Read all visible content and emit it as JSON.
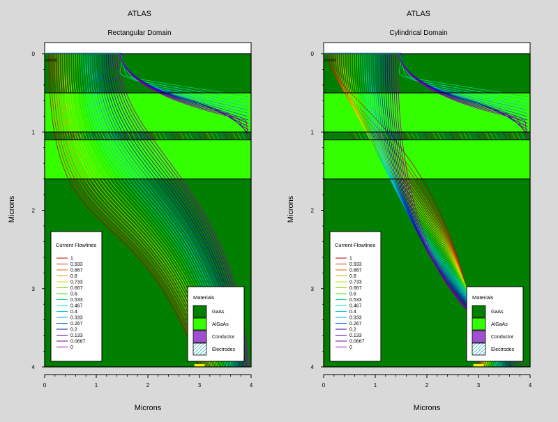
{
  "colors": {
    "background": "#d9d9d9",
    "gaas": "#007f00",
    "algaas": "#33ff00",
    "conductor": "#a04fd0",
    "electrode": "#ffffff"
  },
  "flowline_colors": [
    "#c00000",
    "#cf3300",
    "#d96a00",
    "#e3a000",
    "#e8d000",
    "#b8e200",
    "#7ee000",
    "#3ad800",
    "#00d86a",
    "#00dcb0",
    "#00c8e8",
    "#00a0f0",
    "#0064e0",
    "#0028c8",
    "#1a00b0",
    "#4a00a8",
    "#7000a0",
    "#9a00a0"
  ],
  "chart_data": [
    {
      "type": "contour",
      "app_title": "ATLAS",
      "title": "Rectangular Domain",
      "xlabel": "Microns",
      "ylabel": "Microns",
      "xlim": [
        0,
        4
      ],
      "ylim": [
        4,
        0
      ],
      "x_ticks": [
        "0",
        "1",
        "2",
        "3",
        "4"
      ],
      "y_ticks": [
        "0",
        "1",
        "2",
        "3",
        "4"
      ],
      "electrode_label": "anode",
      "regions": [
        {
          "material": "GaAs",
          "y0": 0.0,
          "y1": 0.5
        },
        {
          "material": "AlGaAs",
          "y0": 0.5,
          "y1": 1.0
        },
        {
          "material": "GaAs",
          "y0": 1.0,
          "y1": 1.1
        },
        {
          "material": "AlGaAs",
          "y0": 1.1,
          "y1": 1.6
        },
        {
          "material": "GaAs",
          "y0": 1.6,
          "y1": 4.0
        }
      ],
      "electrode_top": {
        "x0": 0.0,
        "x1": 1.5
      },
      "electrode_bottom": {
        "x0": 2.9,
        "x1": 3.1
      },
      "legend_title": "Current Flowlines",
      "levels": [
        "1",
        "0.933",
        "0.867",
        "0.8",
        "0.733",
        "0.667",
        "0.6",
        "0.533",
        "0.467",
        "0.4",
        "0.333",
        "0.267",
        "0.2",
        "0.133",
        "0.0667",
        "0"
      ],
      "materials_title": "Materials",
      "materials": [
        "GaAs",
        "AlGaAs",
        "Conductor",
        "Electrodes"
      ]
    },
    {
      "type": "contour",
      "app_title": "ATLAS",
      "title": "Cylindrical Domain",
      "xlabel": "Microns",
      "ylabel": "Microns",
      "xlim": [
        0,
        4
      ],
      "ylim": [
        4,
        0
      ],
      "x_ticks": [
        "0",
        "1",
        "2",
        "3",
        "4"
      ],
      "y_ticks": [
        "0",
        "1",
        "2",
        "3",
        "4"
      ],
      "electrode_label": "anode",
      "regions": [
        {
          "material": "GaAs",
          "y0": 0.0,
          "y1": 0.5
        },
        {
          "material": "AlGaAs",
          "y0": 0.5,
          "y1": 1.0
        },
        {
          "material": "GaAs",
          "y0": 1.0,
          "y1": 1.1
        },
        {
          "material": "AlGaAs",
          "y0": 1.1,
          "y1": 1.6
        },
        {
          "material": "GaAs",
          "y0": 1.6,
          "y1": 4.0
        }
      ],
      "electrode_top": {
        "x0": 0.0,
        "x1": 1.5
      },
      "electrode_bottom": {
        "x0": 2.9,
        "x1": 3.1
      },
      "legend_title": "Current Flowlines",
      "levels": [
        "1",
        "0.933",
        "0.867",
        "0.8",
        "0.733",
        "0.667",
        "0.6",
        "0.533",
        "0.467",
        "0.4",
        "0.333",
        "0.267",
        "0.2",
        "0.133",
        "0.0667",
        "0"
      ],
      "materials_title": "Materials",
      "materials": [
        "GaAs",
        "AlGaAs",
        "Conductor",
        "Electrodes"
      ]
    }
  ]
}
